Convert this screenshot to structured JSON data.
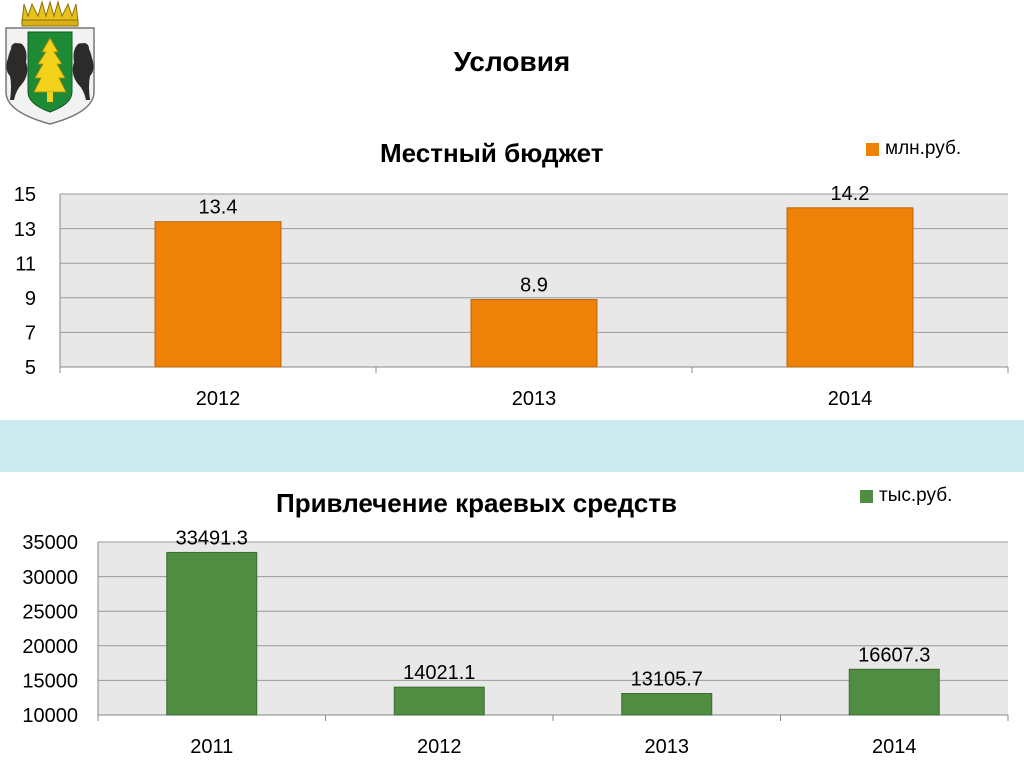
{
  "page": {
    "title": "Условия"
  },
  "colors": {
    "bar_orange": "#ee8209",
    "bar_orange_stroke": "#b9660a",
    "bar_green": "#508d42",
    "bar_green_stroke": "#3c6c31",
    "plot_bg": "#e8e8e8",
    "band": "#cde9f0"
  },
  "chart_data": [
    {
      "type": "bar",
      "title": "Местный бюджет",
      "categories": [
        "2012",
        "2013",
        "2014"
      ],
      "series": [
        {
          "name": "млн.руб.",
          "values": [
            13.4,
            8.9,
            14.2
          ],
          "value_labels": [
            "13.4",
            "8.9",
            "14.2"
          ]
        }
      ],
      "ylim": [
        5,
        15
      ],
      "yticks": [
        5,
        7,
        9,
        11,
        13,
        15
      ],
      "xlabel": "",
      "ylabel": "",
      "grid": true,
      "legend_position": "top-right"
    },
    {
      "type": "bar",
      "title": "Привлечение краевых средств",
      "categories": [
        "2011",
        "2012",
        "2013",
        "2014"
      ],
      "series": [
        {
          "name": "тыс.руб.",
          "values": [
            33491.3,
            14021.1,
            13105.7,
            16607.3
          ],
          "value_labels": [
            "33491.3",
            "14021.1",
            "13105.7",
            "16607.3"
          ]
        }
      ],
      "ylim": [
        10000,
        35000
      ],
      "yticks": [
        10000,
        15000,
        20000,
        25000,
        30000,
        35000
      ],
      "xlabel": "",
      "ylabel": "",
      "grid": true,
      "legend_position": "top-right"
    }
  ]
}
